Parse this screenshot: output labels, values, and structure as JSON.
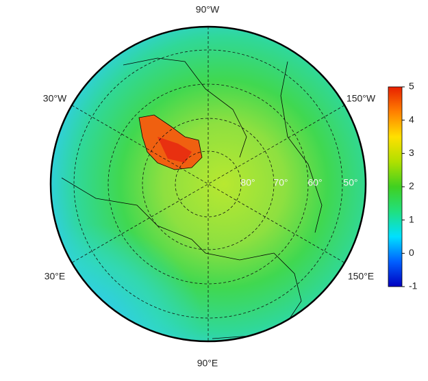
{
  "map": {
    "longitude_labels": [
      "90°W",
      "30°W",
      "150°W",
      "30°E",
      "150°E",
      "90°E"
    ],
    "latitude_labels": [
      "80°",
      "70°",
      "60°",
      "50°"
    ]
  },
  "colorbar": {
    "lim": [
      -1,
      5
    ],
    "ticks": [
      -1,
      0,
      1,
      2,
      3,
      4,
      5
    ],
    "colors": [
      "#0000c0",
      "#0060ff",
      "#00e0ff",
      "#20e080",
      "#40d020",
      "#b0e000",
      "#ffe000",
      "#ff8000",
      "#e82000"
    ]
  }
}
